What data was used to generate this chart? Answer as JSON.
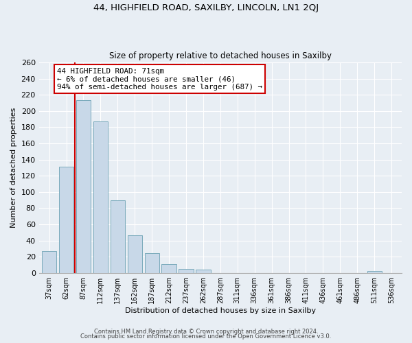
{
  "title_line1": "44, HIGHFIELD ROAD, SAXILBY, LINCOLN, LN1 2QJ",
  "title_line2": "Size of property relative to detached houses in Saxilby",
  "xlabel": "Distribution of detached houses by size in Saxilby",
  "ylabel": "Number of detached properties",
  "bar_labels": [
    "37sqm",
    "62sqm",
    "87sqm",
    "112sqm",
    "137sqm",
    "162sqm",
    "187sqm",
    "212sqm",
    "237sqm",
    "262sqm",
    "287sqm",
    "311sqm",
    "336sqm",
    "361sqm",
    "386sqm",
    "411sqm",
    "436sqm",
    "461sqm",
    "486sqm",
    "511sqm",
    "536sqm"
  ],
  "bar_values": [
    27,
    131,
    213,
    187,
    90,
    46,
    24,
    11,
    5,
    4,
    0,
    0,
    0,
    0,
    0,
    0,
    0,
    0,
    0,
    2,
    0
  ],
  "bar_color": "#c8d8e8",
  "bar_edge_color": "#7aaabb",
  "highlight_color": "#cc0000",
  "annotation_text": "44 HIGHFIELD ROAD: 71sqm\n← 6% of detached houses are smaller (46)\n94% of semi-detached houses are larger (687) →",
  "annotation_box_color": "#ffffff",
  "annotation_box_edge_color": "#cc0000",
  "ylim": [
    0,
    260
  ],
  "yticks": [
    0,
    20,
    40,
    60,
    80,
    100,
    120,
    140,
    160,
    180,
    200,
    220,
    240,
    260
  ],
  "footer_line1": "Contains HM Land Registry data © Crown copyright and database right 2024.",
  "footer_line2": "Contains public sector information licensed under the Open Government Licence v3.0.",
  "background_color": "#e8eef4",
  "plot_background": "#e8eef4",
  "grid_color": "#ffffff"
}
